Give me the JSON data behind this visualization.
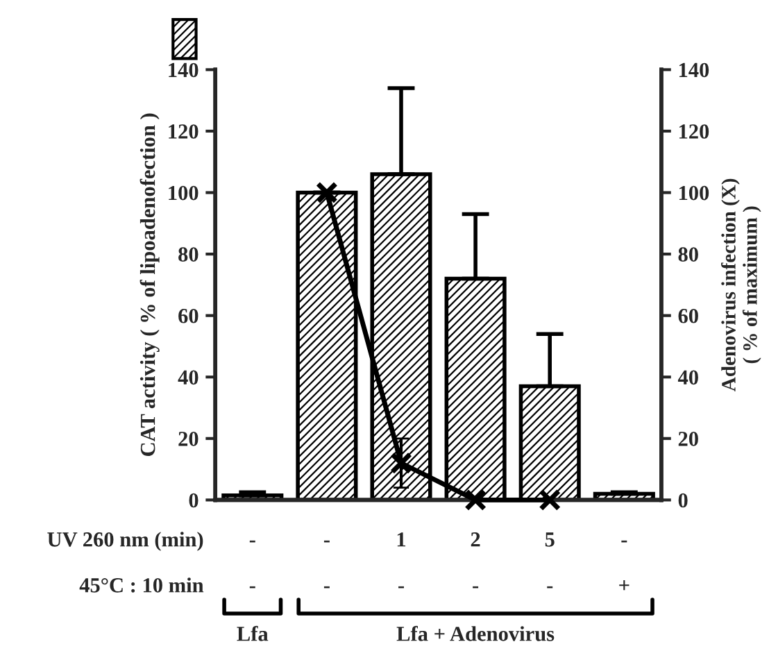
{
  "chart_data": {
    "type": "bar",
    "categories": [
      null,
      null,
      null,
      null,
      null,
      null
    ],
    "ylabel": "CAT activity ( % of lipoadenofection )",
    "y2label": "Adenovirus infection (X)\n( % of maximum )",
    "series": [
      {
        "color": "#000000",
        "values": [
          1.5,
          100,
          106,
          72,
          37,
          2
        ],
        "errors": [
          1,
          null,
          28,
          21,
          17,
          0.5
        ]
      },
      {
        "type": "line",
        "axis": "y2",
        "color": "#000000",
        "marker": "cross",
        "values": [
          null,
          100,
          12,
          0,
          0,
          null
        ],
        "errors": [
          null,
          null,
          8,
          null,
          null,
          null
        ]
      }
    ],
    "ylim": [
      0,
      140
    ],
    "yticks": [
      0,
      20,
      40,
      60,
      80,
      100,
      120,
      140
    ],
    "y2lim": [
      0,
      140
    ],
    "y2ticks": [
      0,
      20,
      40,
      60,
      80,
      100,
      120,
      140
    ],
    "grid": false,
    "legend": false,
    "annotations": [
      "UV 260 nm (min)",
      "-",
      "-",
      "1",
      "2",
      "5",
      "-",
      "45°C : 10 min",
      "-",
      "-",
      "-",
      "-",
      "-",
      "+",
      "Lfa",
      "Lfa + Adenovirus"
    ]
  }
}
